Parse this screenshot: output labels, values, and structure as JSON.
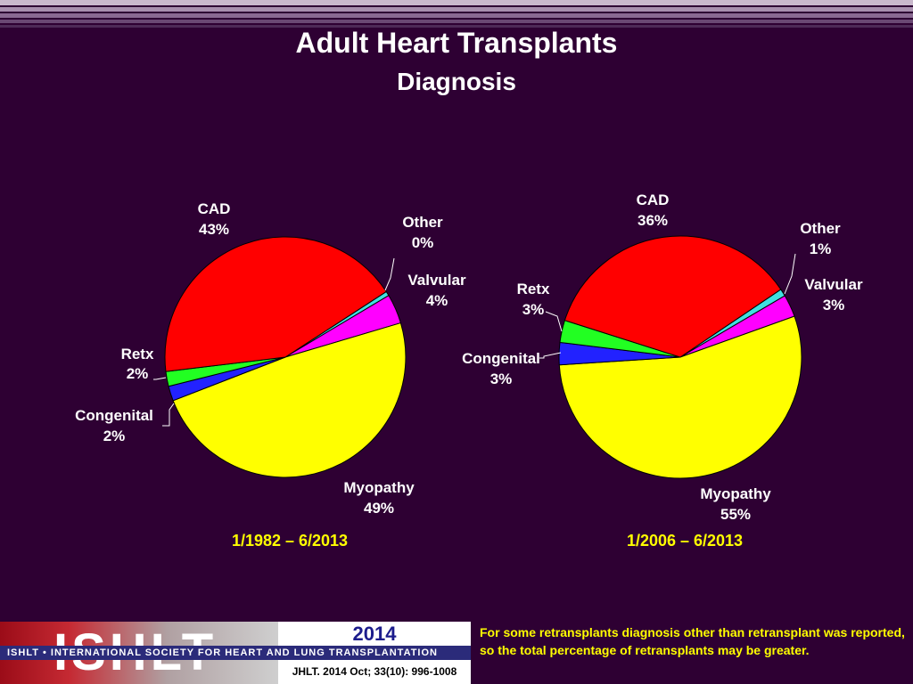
{
  "header": {
    "title": "Adult Heart Transplants",
    "subtitle": "Diagnosis"
  },
  "colors": {
    "background": "#2e0033",
    "CAD": "#ff0000",
    "Other": "#40e0e0",
    "Valvular": "#ff00ff",
    "Myopathy": "#ffff00",
    "Congenital": "#2222ff",
    "Retx": "#22ff22",
    "period_text": "#ffff00"
  },
  "chart_data": [
    {
      "type": "pie",
      "title": "1/1982 – 6/2013",
      "slices": [
        {
          "label": "CAD",
          "value": 43,
          "pct_label": "43%"
        },
        {
          "label": "Other",
          "value": 0,
          "pct_label": "0%"
        },
        {
          "label": "Valvular",
          "value": 4,
          "pct_label": "4%"
        },
        {
          "label": "Myopathy",
          "value": 49,
          "pct_label": "49%"
        },
        {
          "label": "Congenital",
          "value": 2,
          "pct_label": "2%"
        },
        {
          "label": "Retx",
          "value": 2,
          "pct_label": "2%"
        }
      ]
    },
    {
      "type": "pie",
      "title": "1/2006 – 6/2013",
      "slices": [
        {
          "label": "CAD",
          "value": 36,
          "pct_label": "36%"
        },
        {
          "label": "Other",
          "value": 1,
          "pct_label": "1%"
        },
        {
          "label": "Valvular",
          "value": 3,
          "pct_label": "3%"
        },
        {
          "label": "Myopathy",
          "value": 55,
          "pct_label": "55%"
        },
        {
          "label": "Congenital",
          "value": 3,
          "pct_label": "3%"
        },
        {
          "label": "Retx",
          "value": 3,
          "pct_label": "3%"
        }
      ]
    }
  ],
  "footer": {
    "logo_text": "ISHLT",
    "society_text": "ISHLT • INTERNATIONAL SOCIETY FOR HEART AND LUNG TRANSPLANTATION",
    "year": "2014",
    "citation": "JHLT. 2014 Oct; 33(10): 996-1008",
    "note": "For some retransplants diagnosis other than retransplant was reported, so the total percentage of retransplants may be greater."
  }
}
